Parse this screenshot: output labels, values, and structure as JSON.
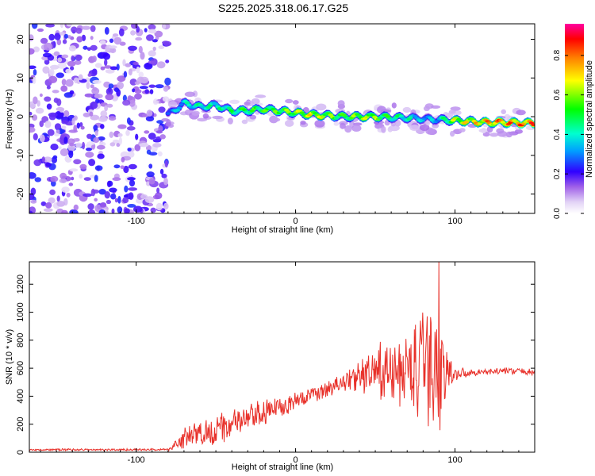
{
  "title": "S225.2025.318.06.17.G25",
  "colors": {
    "snr_line": "#e8312a",
    "axis": "#000000",
    "background": "#ffffff"
  },
  "chart_data": [
    {
      "type": "heatmap",
      "title": "S225.2025.318.06.17.G25",
      "xlabel": "Height of straight line (km)",
      "ylabel": "Frequency (Hz)",
      "xlim": [
        -167,
        150
      ],
      "ylim": [
        -25,
        24
      ],
      "xticks": [
        -100,
        0,
        100
      ],
      "yticks": [
        -20,
        -10,
        0,
        10,
        20
      ],
      "colorbar": {
        "label": "Normalized spectral amplitude",
        "range": [
          0,
          0.96
        ],
        "ticks": [
          0.0,
          0.2,
          0.4,
          0.6,
          0.8
        ],
        "colormap": "rainbow"
      },
      "description_regions": [
        {
          "x_range": [
            -167,
            -80
          ],
          "character": "diffuse noise, amplitude ~0.1-0.3"
        },
        {
          "x_range": [
            -80,
            150
          ],
          "character": "narrow band near 0 Hz, amplitude rising to ~0.9"
        }
      ],
      "ridge": {
        "x": [
          -80,
          -70,
          -60,
          -50,
          -40,
          -30,
          -20,
          -10,
          0,
          10,
          20,
          30,
          40,
          50,
          60,
          70,
          80,
          90,
          100,
          110,
          120,
          130,
          140,
          150
        ],
        "freq": [
          0.5,
          3.5,
          2.5,
          3.0,
          1.5,
          1.5,
          2.0,
          1.5,
          1.0,
          0.5,
          0.3,
          0.0,
          0.0,
          0.0,
          -0.2,
          -0.3,
          -0.5,
          -0.8,
          -1.0,
          -1.2,
          -1.5,
          -1.5,
          -1.6,
          -1.7
        ],
        "amplitude": [
          0.35,
          0.45,
          0.5,
          0.5,
          0.55,
          0.6,
          0.62,
          0.65,
          0.7,
          0.78,
          0.7,
          0.6,
          0.72,
          0.7,
          0.55,
          0.5,
          0.4,
          0.42,
          0.75,
          0.8,
          0.88,
          0.92,
          0.93,
          0.94
        ]
      }
    },
    {
      "type": "line",
      "xlabel": "Height of straight line (km)",
      "ylabel": "SNR (10 * v/v)",
      "xlim": [
        -167,
        150
      ],
      "ylim": [
        0,
        1360
      ],
      "xticks": [
        -100,
        0,
        100
      ],
      "yticks": [
        0,
        200,
        400,
        600,
        800,
        1000,
        1200
      ],
      "series": [
        {
          "name": "SNR",
          "envelope_x": [
            -167,
            -80,
            -70,
            -60,
            -50,
            -40,
            -30,
            -20,
            -10,
            0,
            10,
            20,
            30,
            40,
            50,
            60,
            70,
            75,
            80,
            85,
            90,
            95,
            100,
            110,
            120,
            130,
            140,
            150
          ],
          "envelope_mean": [
            18,
            18,
            100,
            130,
            160,
            200,
            240,
            280,
            330,
            360,
            410,
            450,
            500,
            540,
            560,
            560,
            580,
            600,
            580,
            570,
            560,
            560,
            560,
            570,
            575,
            580,
            580,
            570
          ],
          "envelope_amplitude": [
            8,
            8,
            80,
            110,
            120,
            130,
            110,
            100,
            90,
            70,
            60,
            60,
            70,
            120,
            230,
            230,
            300,
            400,
            480,
            560,
            450,
            200,
            60,
            25,
            25,
            25,
            25,
            25
          ],
          "peak": {
            "x": 90,
            "y": 1360
          }
        }
      ]
    }
  ]
}
